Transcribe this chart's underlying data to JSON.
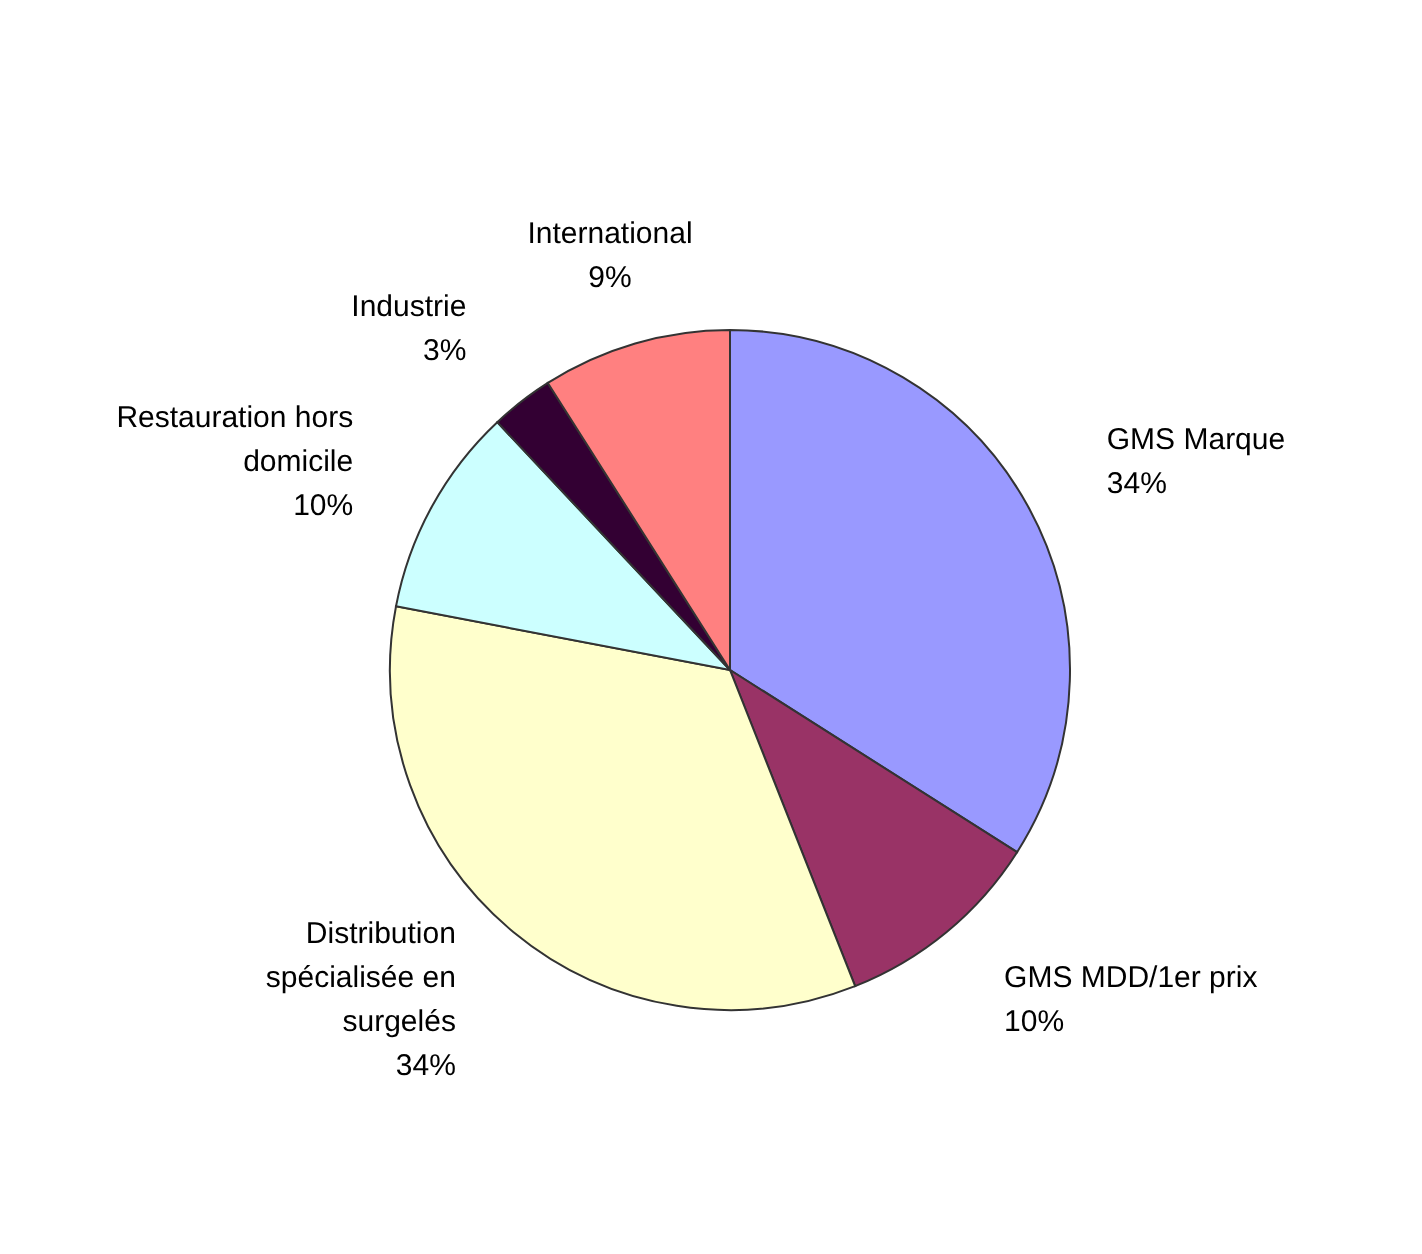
{
  "chart_data": {
    "type": "pie",
    "categories": [
      "GMS Marque",
      "GMS MDD/1er prix",
      "Distribution spécialisée en surgelés",
      "Restauration hors domicile",
      "Industrie",
      "International"
    ],
    "values": [
      34,
      10,
      34,
      10,
      3,
      9
    ],
    "value_labels": [
      "34%",
      "10%",
      "34%",
      "10%",
      "3%",
      "9%"
    ],
    "colors": [
      "#9999ff",
      "#993366",
      "#ffffcc",
      "#ccffff",
      "#330033",
      "#ff8080"
    ],
    "legend": false
  }
}
